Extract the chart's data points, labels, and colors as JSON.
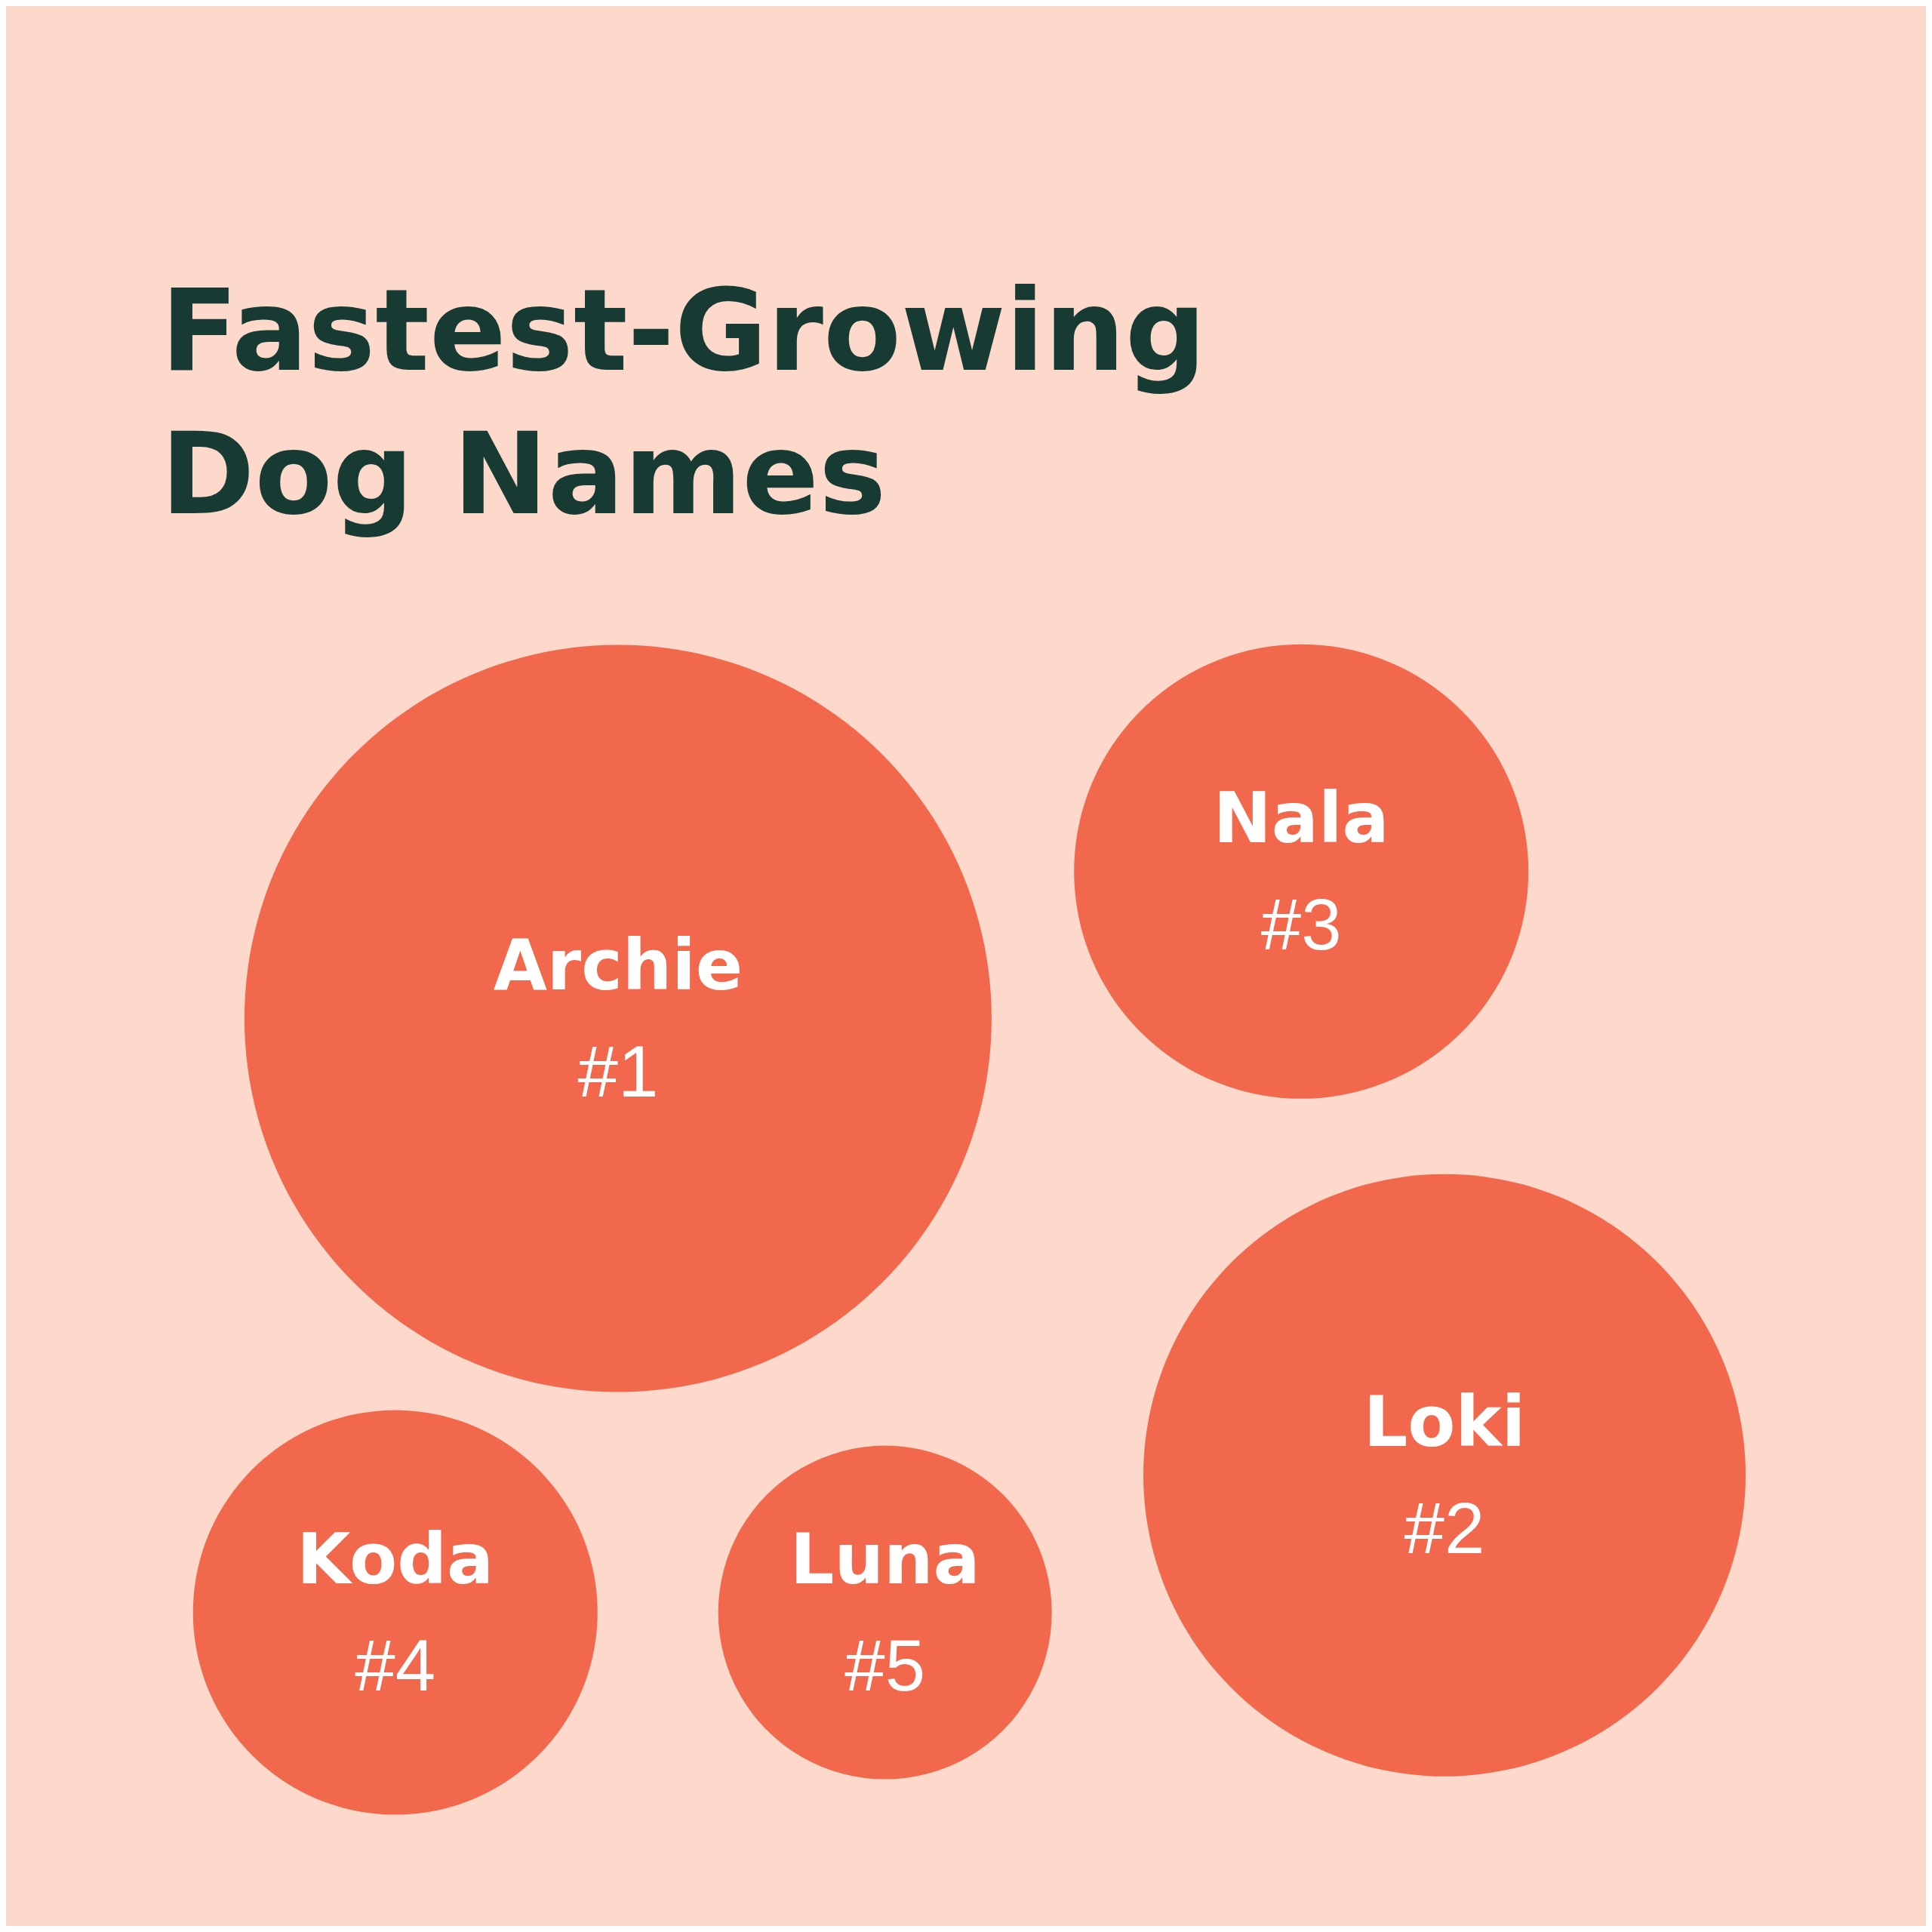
{
  "chart_data": {
    "type": "other",
    "title": "Fastest-Growing Dog Names",
    "color": "#f2684c",
    "categories": [
      "Archie",
      "Loki",
      "Nala",
      "Koda",
      "Luna"
    ],
    "values": [
      1,
      2,
      3,
      4,
      5
    ],
    "value_labels": [
      "#1",
      "#2",
      "#3",
      "#4",
      "#5"
    ]
  }
}
